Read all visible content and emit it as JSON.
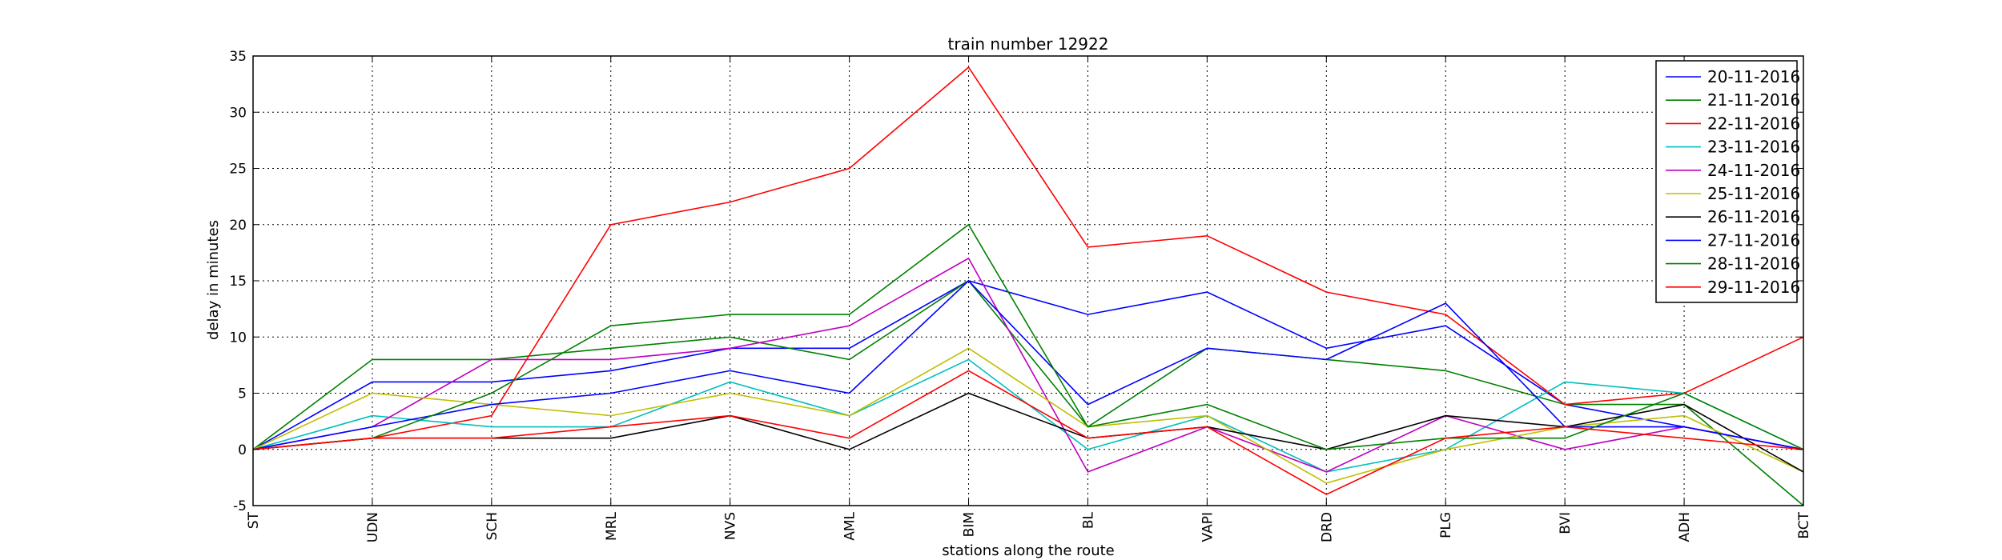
{
  "chart_data": {
    "type": "line",
    "title": "train number 12922",
    "xlabel": "stations along the route",
    "ylabel": "delay in minutes",
    "categories": [
      "ST",
      "UDN",
      "SCH",
      "MRL",
      "NVS",
      "AML",
      "BIM",
      "BL",
      "VAPI",
      "DRD",
      "PLG",
      "BVI",
      "ADH",
      "BCT"
    ],
    "ylim": [
      -5,
      35
    ],
    "yticks": [
      -5,
      0,
      5,
      10,
      15,
      20,
      25,
      30,
      35
    ],
    "grid": true,
    "legend_position": "top-right",
    "series": [
      {
        "name": "20-11-2016",
        "color": "#0000ff",
        "values": [
          0,
          6,
          6,
          7,
          9,
          9,
          15,
          12,
          14,
          9,
          11,
          4,
          2,
          0
        ]
      },
      {
        "name": "21-11-2016",
        "color": "#008000",
        "values": [
          0,
          8,
          8,
          9,
          10,
          8,
          15,
          2,
          9,
          8,
          7,
          4,
          4,
          -5
        ]
      },
      {
        "name": "22-11-2016",
        "color": "#ff0000",
        "values": [
          0,
          1,
          3,
          20,
          22,
          25,
          34,
          18,
          19,
          14,
          12,
          4,
          5,
          10
        ]
      },
      {
        "name": "23-11-2016",
        "color": "#00bfbf",
        "values": [
          0,
          3,
          2,
          2,
          6,
          3,
          8,
          0,
          3,
          -2,
          0,
          6,
          5,
          0
        ]
      },
      {
        "name": "24-11-2016",
        "color": "#bf00bf",
        "values": [
          0,
          2,
          8,
          8,
          9,
          11,
          17,
          -2,
          2,
          -2,
          3,
          0,
          2,
          0
        ]
      },
      {
        "name": "25-11-2016",
        "color": "#bfbf00",
        "values": [
          0,
          5,
          4,
          3,
          5,
          3,
          9,
          2,
          3,
          -3,
          0,
          2,
          3,
          -2
        ]
      },
      {
        "name": "26-11-2016",
        "color": "#000000",
        "values": [
          0,
          1,
          1,
          1,
          3,
          0,
          5,
          1,
          2,
          0,
          3,
          2,
          4,
          -2
        ]
      },
      {
        "name": "27-11-2016",
        "color": "#0000ff",
        "values": [
          0,
          2,
          4,
          5,
          7,
          5,
          15,
          4,
          9,
          8,
          13,
          2,
          2,
          0
        ]
      },
      {
        "name": "28-11-2016",
        "color": "#008000",
        "values": [
          0,
          1,
          5,
          11,
          12,
          12,
          20,
          2,
          4,
          0,
          1,
          1,
          5,
          0
        ]
      },
      {
        "name": "29-11-2016",
        "color": "#ff0000",
        "values": [
          0,
          1,
          1,
          2,
          3,
          1,
          7,
          1,
          2,
          -4,
          1,
          2,
          1,
          0
        ]
      }
    ]
  }
}
